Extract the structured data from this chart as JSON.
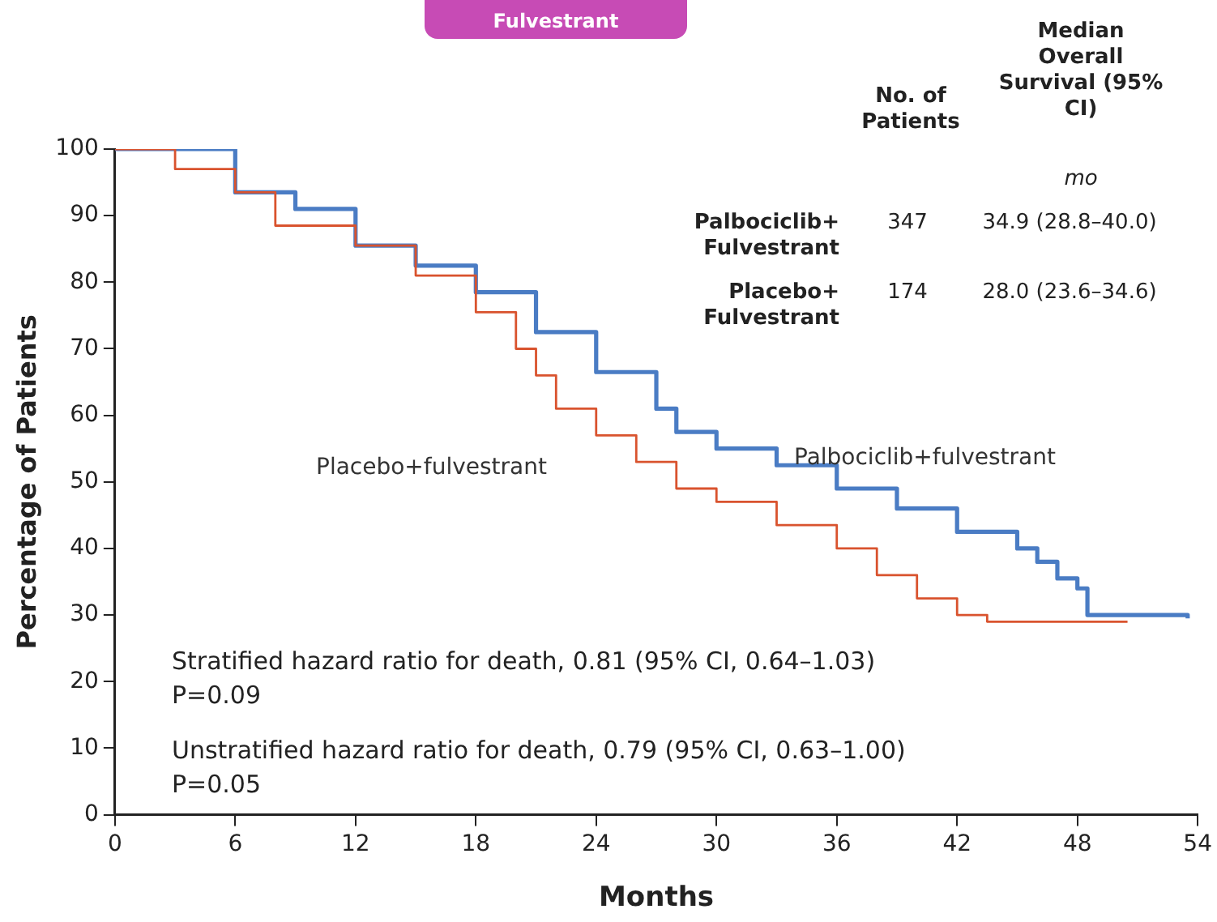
{
  "chart_data": {
    "type": "step",
    "xlabel": "Months",
    "ylabel": "Percentage of Patients",
    "xlim": [
      0,
      54
    ],
    "xticks": [
      0,
      6,
      12,
      18,
      24,
      30,
      36,
      42,
      48,
      54
    ],
    "ylim": [
      0,
      100
    ],
    "yticks": [
      0,
      10,
      20,
      30,
      40,
      50,
      60,
      70,
      80,
      90,
      100
    ],
    "grid": false,
    "legend": false,
    "series": [
      {
        "name": "Palbociclib+fulvestrant",
        "color": "#4a7cc4",
        "x": [
          0,
          6,
          9,
          12,
          15,
          18,
          21,
          24,
          27,
          28,
          30,
          33,
          36,
          39,
          42,
          45,
          46,
          47,
          48,
          48.5,
          53.5
        ],
        "values": [
          100,
          93.5,
          91,
          85.5,
          82.5,
          78.5,
          72.5,
          66.5,
          61,
          57.5,
          55,
          52.5,
          49,
          46,
          42.5,
          40,
          38,
          35.5,
          34,
          30,
          29.5
        ]
      },
      {
        "name": "Placebo+fulvestrant",
        "color": "#d9532e",
        "x": [
          0,
          3,
          6,
          8,
          12,
          15,
          18,
          20,
          21,
          22,
          24,
          26,
          28,
          30,
          33,
          36,
          38,
          40,
          42,
          43.5,
          50.5
        ],
        "values": [
          100,
          97,
          93.5,
          88.5,
          85.5,
          81,
          75.5,
          70,
          66,
          61,
          57,
          53,
          49,
          47,
          43.5,
          40,
          36,
          32.5,
          30,
          29,
          29
        ]
      }
    ],
    "annotations": [
      "Fulvestrant",
      "No. of Patients",
      "Median Overall Survival (95% CI)",
      "mo",
      "Palbociclib+ Fulvestrant",
      "347",
      "34.9 (28.8–40.0)",
      "Placebo+ Fulvestrant",
      "174",
      "28.0 (23.6–34.6)",
      "Stratified hazard ratio for death, 0.81 (95% CI, 0.64–1.03)",
      "P=0.09",
      "Unstratified hazard ratio for death, 0.79 (95% CI, 0.63–1.00)",
      "P=0.05"
    ]
  }
}
